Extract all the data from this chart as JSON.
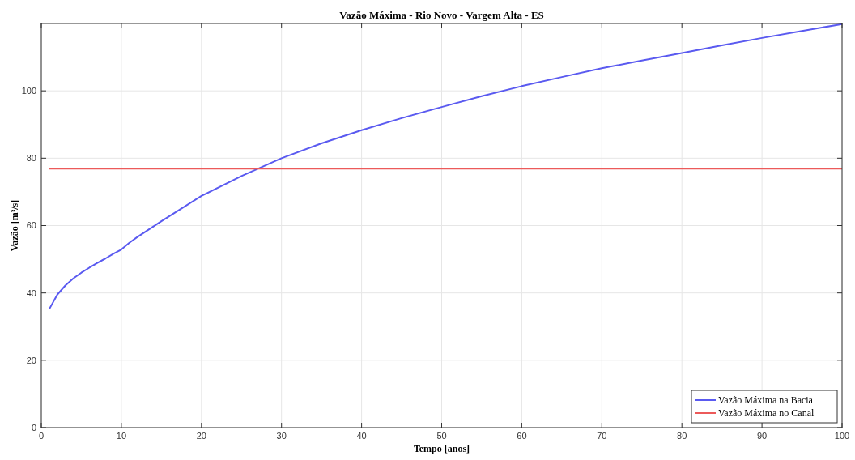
{
  "chart_data": {
    "type": "line",
    "title": "Vazão Máxima - Rio Novo - Vargem Alta - ES",
    "xlabel": "Tempo [anos]",
    "ylabel": "Vazão [m³/s]",
    "xlim": [
      0,
      100
    ],
    "xticks": [
      0,
      10,
      20,
      30,
      40,
      50,
      60,
      70,
      80,
      90,
      100
    ],
    "ylim": [
      0,
      120
    ],
    "yticks": [
      0,
      20,
      40,
      60,
      80,
      100
    ],
    "grid": true,
    "legend": "bottom right",
    "line_style": "solid",
    "series": [
      {
        "name": "Vazão Máxima na Bacia",
        "color": "#5a5af0",
        "x": [
          1,
          2,
          3,
          4,
          5,
          6,
          7,
          8,
          9,
          10,
          11,
          12,
          15,
          20,
          25,
          30,
          35,
          40,
          45,
          50,
          55,
          60,
          65,
          70,
          75,
          80,
          85,
          90,
          95,
          100
        ],
        "values": [
          35.2,
          39.5,
          42.2,
          44.3,
          46.0,
          47.5,
          48.9,
          50.2,
          51.6,
          52.9,
          54.9,
          56.6,
          61.3,
          68.8,
          74.7,
          80.0,
          84.4,
          88.3,
          91.9,
          95.2,
          98.4,
          101.4,
          104.1,
          106.7,
          109.0,
          111.2,
          113.5,
          115.7,
          117.8,
          119.8
        ]
      },
      {
        "name": "Vazão Máxima no Canal",
        "color": "#ec5a5a",
        "x": [
          1,
          100
        ],
        "values": [
          76.9,
          76.9
        ]
      }
    ]
  }
}
